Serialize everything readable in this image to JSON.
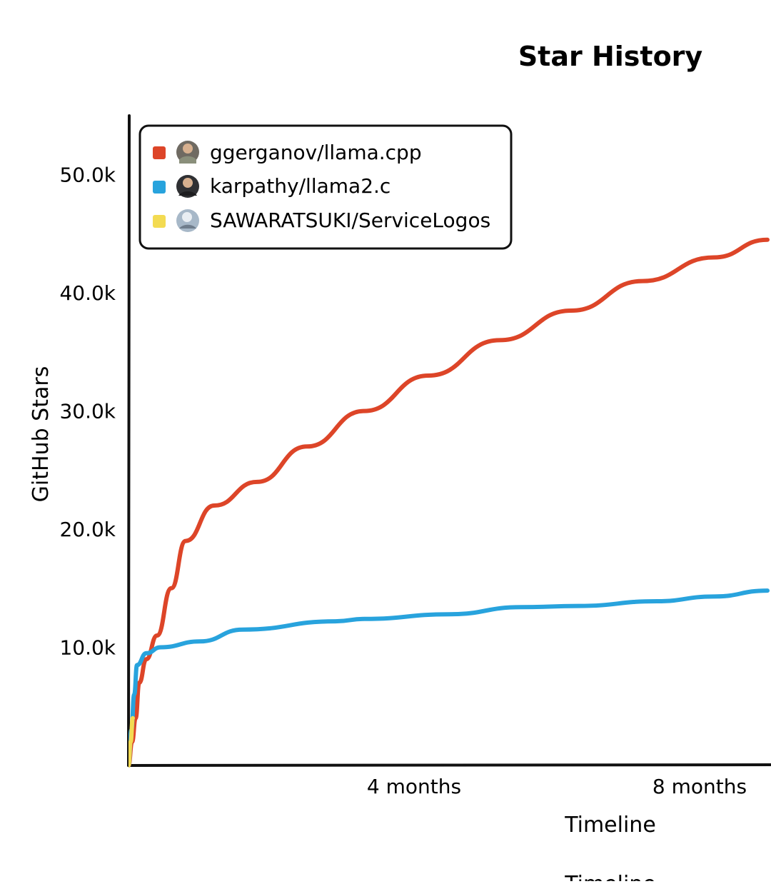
{
  "chart_data": {
    "type": "line",
    "title": "Star History",
    "xlabel": "Timeline",
    "ylabel": "GitHub Stars",
    "x_unit": "months",
    "x_range": [
      0,
      9
    ],
    "ylim": [
      0,
      55000
    ],
    "x_ticks": [
      {
        "value": 4,
        "label": "4 months"
      },
      {
        "value": 8,
        "label": "8 months"
      }
    ],
    "y_ticks": [
      {
        "value": 10000,
        "label": "10.0k"
      },
      {
        "value": 20000,
        "label": "20.0k"
      },
      {
        "value": 30000,
        "label": "30.0k"
      },
      {
        "value": 40000,
        "label": "40.0k"
      },
      {
        "value": 50000,
        "label": "50.0k"
      }
    ],
    "grid": false,
    "legend_position": "top-left",
    "series": [
      {
        "name": "ggerganov/llama.cpp",
        "color": "#dd4528",
        "avatar_icon": "ggerganov-avatar-icon",
        "points": [
          [
            0,
            0
          ],
          [
            0.05,
            2000
          ],
          [
            0.1,
            4000
          ],
          [
            0.15,
            7000
          ],
          [
            0.25,
            9000
          ],
          [
            0.4,
            11000
          ],
          [
            0.6,
            15000
          ],
          [
            0.8,
            19000
          ],
          [
            1.2,
            22000
          ],
          [
            1.8,
            24000
          ],
          [
            2.5,
            27000
          ],
          [
            3.3,
            30000
          ],
          [
            4.2,
            33000
          ],
          [
            5.2,
            36000
          ],
          [
            6.2,
            38500
          ],
          [
            7.2,
            41000
          ],
          [
            8.2,
            43000
          ],
          [
            8.95,
            44500
          ]
        ]
      },
      {
        "name": "karpathy/llama2.c",
        "color": "#28a3dd",
        "avatar_icon": "karpathy-avatar-icon",
        "points": [
          [
            0,
            0
          ],
          [
            0.04,
            3000
          ],
          [
            0.08,
            6000
          ],
          [
            0.12,
            8500
          ],
          [
            0.25,
            9500
          ],
          [
            0.45,
            10000
          ],
          [
            1.0,
            10500
          ],
          [
            1.6,
            11500
          ],
          [
            2.9,
            12200
          ],
          [
            3.3,
            12400
          ],
          [
            4.5,
            12800
          ],
          [
            5.5,
            13400
          ],
          [
            6.3,
            13500
          ],
          [
            7.4,
            13900
          ],
          [
            8.2,
            14300
          ],
          [
            8.95,
            14800
          ]
        ]
      },
      {
        "name": "SAWARATSUKI/ServiceLogos",
        "color": "#f3db52",
        "avatar_icon": "sawaratsuki-avatar-icon",
        "points": [
          [
            0,
            0
          ],
          [
            0.03,
            2000
          ],
          [
            0.06,
            4000
          ]
        ]
      }
    ]
  },
  "footer_clipped_text": "Timeline"
}
